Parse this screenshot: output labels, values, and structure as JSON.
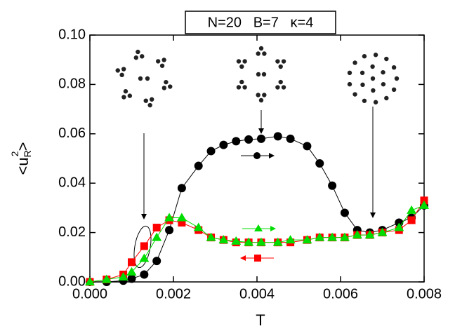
{
  "chart_data": {
    "type": "line",
    "title": "N=20   B=7   κ=4",
    "x_label": "T",
    "y_label": {
      "base": "<u",
      "sub": "R",
      "sup": "2",
      "close": ">"
    },
    "x": [
      0,
      0.0004,
      0.0008,
      0.001,
      0.0013,
      0.0016,
      0.0019,
      0.0022,
      0.0026,
      0.0029,
      0.0032,
      0.0035,
      0.0038,
      0.0041,
      0.0045,
      0.0048,
      0.0052,
      0.0055,
      0.0058,
      0.0061,
      0.0064,
      0.0067,
      0.007,
      0.0074,
      0.0077,
      0.008
    ],
    "series": [
      {
        "color": "#000000",
        "marker": "circle",
        "values": [
          0,
          0,
          0.0005,
          0.0013,
          0.003,
          0.0085,
          0.021,
          0.038,
          0.047,
          0.053,
          0.0555,
          0.057,
          0.0577,
          0.058,
          0.059,
          0.058,
          0.055,
          0.048,
          0.039,
          0.028,
          0.021,
          0.02,
          0.021,
          0.024,
          0.026,
          0.031
        ]
      },
      {
        "color": "#ff0000",
        "marker": "square",
        "values": [
          0,
          0.001,
          0.003,
          0.008,
          0.0145,
          0.022,
          0.025,
          0.024,
          0.021,
          0.018,
          0.017,
          0.016,
          0.016,
          0.016,
          0.016,
          0.016,
          0.017,
          0.018,
          0.018,
          0.018,
          0.019,
          0.019,
          0.02,
          0.021,
          0.025,
          0.033
        ]
      },
      {
        "color": "#00dd00",
        "marker": "triangle",
        "values": [
          0,
          0.001,
          0.002,
          0.004,
          0.0095,
          0.018,
          0.026,
          0.026,
          0.022,
          0.018,
          0.017,
          0.0165,
          0.016,
          0.016,
          0.016,
          0.017,
          0.017,
          0.018,
          0.018,
          0.018,
          0.019,
          0.019,
          0.02,
          0.022,
          0.029,
          0.031
        ]
      }
    ],
    "xlim": [
      0,
      0.008
    ],
    "ylim": [
      0,
      0.1
    ],
    "xticks": [
      {
        "value": 0,
        "label": "0.000"
      },
      {
        "value": 0.002,
        "label": "0.002"
      },
      {
        "value": 0.004,
        "label": "0.004"
      },
      {
        "value": 0.006,
        "label": "0.006"
      },
      {
        "value": 0.008,
        "label": "0.008"
      }
    ],
    "yticks": [
      {
        "value": 0,
        "label": "0.00"
      },
      {
        "value": 0.02,
        "label": "0.02"
      },
      {
        "value": 0.04,
        "label": "0.04"
      },
      {
        "value": 0.06,
        "label": "0.06"
      },
      {
        "value": 0.08,
        "label": "0.08"
      },
      {
        "value": 0.1,
        "label": "0.10"
      }
    ]
  }
}
